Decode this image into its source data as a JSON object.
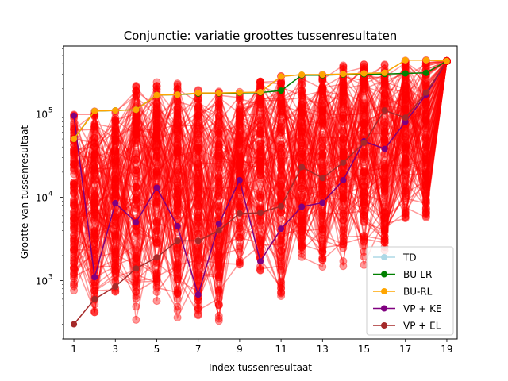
{
  "chart_data": {
    "type": "line",
    "title": "Conjunctie: variatie groottes tussenresultaten",
    "xlabel": "Index tussenresultaat",
    "ylabel": "Grootte van tussenresultaat",
    "xscale": "linear",
    "yscale": "log",
    "xlim": [
      0.5,
      19.5
    ],
    "ylim": [
      200,
      650000
    ],
    "xticks": [
      1,
      3,
      5,
      7,
      9,
      11,
      13,
      15,
      17,
      19
    ],
    "xtick_labels": [
      "1",
      "3",
      "5",
      "7",
      "9",
      "11",
      "13",
      "15",
      "17",
      "19"
    ],
    "yticks": [
      1000,
      10000,
      100000
    ],
    "ytick_labels": [
      {
        "base": "10",
        "exp": "3"
      },
      {
        "base": "10",
        "exp": "4"
      },
      {
        "base": "10",
        "exp": "5"
      }
    ],
    "grid": false,
    "legend_position": "lower-right",
    "background_series": {
      "color": "#ff0000",
      "opacity": 0.4,
      "count": 120,
      "x": [
        1,
        2,
        3,
        4,
        5,
        6,
        7,
        8,
        9,
        10,
        11,
        12,
        13,
        14,
        15,
        16,
        17,
        18,
        19
      ],
      "x_range": [
        1,
        19
      ],
      "final_value": 430000,
      "lower_envelope": [
        650,
        400,
        650,
        300,
        520,
        300,
        300,
        300,
        1400,
        1200,
        650,
        1800,
        1400,
        1400,
        1400,
        2200,
        5000,
        5600,
        430000
      ],
      "upper_envelope": [
        100000,
        108000,
        110000,
        240000,
        240000,
        240000,
        200000,
        200000,
        185000,
        250000,
        290000,
        300000,
        300000,
        400000,
        400000,
        400000,
        440000,
        440000,
        430000
      ]
    },
    "series": [
      {
        "name": "TD",
        "color": "#add8e6",
        "x": [
          1,
          2,
          3,
          4,
          5,
          6,
          7,
          8,
          9,
          10,
          11,
          12,
          13,
          14,
          15,
          16,
          17,
          18,
          19
        ],
        "values": [
          50000,
          108000,
          110000,
          112000,
          168000,
          170000,
          178000,
          178000,
          180000,
          182000,
          280000,
          295000,
          295000,
          300000,
          305000,
          310000,
          440000,
          440000,
          430000
        ]
      },
      {
        "name": "BU-LR",
        "color": "#008000",
        "x": [
          1,
          2,
          3,
          4,
          5,
          6,
          7,
          8,
          9,
          10,
          11,
          12,
          13,
          14,
          15,
          16,
          17,
          18,
          19
        ],
        "values": [
          50000,
          108000,
          110000,
          112000,
          168000,
          170000,
          175000,
          176000,
          178000,
          180000,
          190000,
          290000,
          290000,
          295000,
          298000,
          300000,
          305000,
          310000,
          430000
        ]
      },
      {
        "name": "BU-RL",
        "color": "#ffa500",
        "x": [
          1,
          2,
          3,
          4,
          5,
          6,
          7,
          8,
          9,
          10,
          11,
          12,
          13,
          14,
          15,
          16,
          17,
          18,
          19
        ],
        "values": [
          50000,
          108000,
          110000,
          112000,
          168000,
          170000,
          178000,
          178000,
          180000,
          182000,
          280000,
          295000,
          295000,
          300000,
          305000,
          310000,
          440000,
          440000,
          430000
        ]
      },
      {
        "name": "VP + KE",
        "color": "#800080",
        "x": [
          1,
          2,
          3,
          4,
          5,
          6,
          7,
          8,
          9,
          10,
          11,
          12,
          13,
          14,
          15,
          16,
          17,
          18,
          19
        ],
        "values": [
          95000,
          1100,
          8500,
          5000,
          13000,
          4500,
          680,
          4800,
          16000,
          1700,
          4200,
          7700,
          8600,
          16000,
          47000,
          38000,
          80000,
          170000,
          430000
        ]
      },
      {
        "name": "VP + EL",
        "color": "#a52a2a",
        "x": [
          1,
          2,
          3,
          4,
          5,
          6,
          7,
          8,
          9,
          10,
          11,
          12,
          13,
          14,
          15,
          16,
          17,
          18,
          19
        ],
        "values": [
          300,
          600,
          850,
          1400,
          1900,
          3000,
          3000,
          4000,
          6400,
          6500,
          7800,
          23000,
          17000,
          26000,
          45000,
          110000,
          90000,
          180000,
          430000
        ]
      }
    ]
  }
}
